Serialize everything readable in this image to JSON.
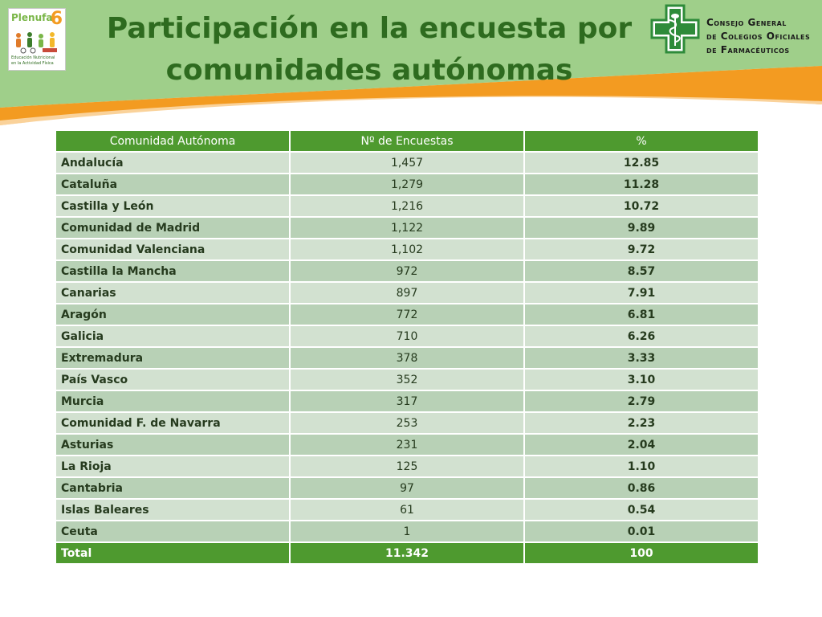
{
  "title": {
    "line1": "Participación en la encuesta por",
    "line2": "comunidades autónomas"
  },
  "logo_left": {
    "brand": "Plenufa",
    "brand_number": "6",
    "tagline_line1": "Educación Nutricional",
    "tagline_line2": "en la Actividad Física"
  },
  "logo_right": {
    "org_line1": "Consejo General",
    "org_line2": "de Colegios Oficiales",
    "org_line3": "de Farmacéuticos"
  },
  "colors": {
    "header_green": "#9fcf8a",
    "header_orange": "#f39b21",
    "title_green": "#2e6b1f",
    "table_header": "#4e9a2f",
    "row_light": "#d2e1d0",
    "row_dark": "#b8d1b6"
  },
  "table": {
    "headers": [
      "Comunidad Autónoma",
      "Nº de Encuestas",
      "%"
    ],
    "rows": [
      {
        "name": "Andalucía",
        "count": "1,457",
        "pct": "12.85"
      },
      {
        "name": "Cataluña",
        "count": "1,279",
        "pct": "11.28"
      },
      {
        "name": "Castilla y León",
        "count": "1,216",
        "pct": "10.72"
      },
      {
        "name": "Comunidad de Madrid",
        "count": "1,122",
        "pct": "9.89"
      },
      {
        "name": "Comunidad Valenciana",
        "count": "1,102",
        "pct": "9.72"
      },
      {
        "name": "Castilla la Mancha",
        "count": "972",
        "pct": "8.57"
      },
      {
        "name": "Canarias",
        "count": "897",
        "pct": "7.91"
      },
      {
        "name": "Aragón",
        "count": "772",
        "pct": "6.81"
      },
      {
        "name": "Galicia",
        "count": "710",
        "pct": "6.26"
      },
      {
        "name": "Extremadura",
        "count": "378",
        "pct": "3.33"
      },
      {
        "name": "País Vasco",
        "count": "352",
        "pct": "3.10"
      },
      {
        "name": "Murcia",
        "count": "317",
        "pct": "2.79"
      },
      {
        "name": "Comunidad F. de Navarra",
        "count": "253",
        "pct": "2.23"
      },
      {
        "name": "Asturias",
        "count": "231",
        "pct": "2.04"
      },
      {
        "name": "La Rioja",
        "count": "125",
        "pct": "1.10"
      },
      {
        "name": "Cantabria",
        "count": "97",
        "pct": "0.86"
      },
      {
        "name": "Islas Baleares",
        "count": "61",
        "pct": "0.54"
      },
      {
        "name": "Ceuta",
        "count": "1",
        "pct": "0.01"
      }
    ],
    "total": {
      "name": "Total",
      "count": "11.342",
      "pct": "100"
    }
  }
}
